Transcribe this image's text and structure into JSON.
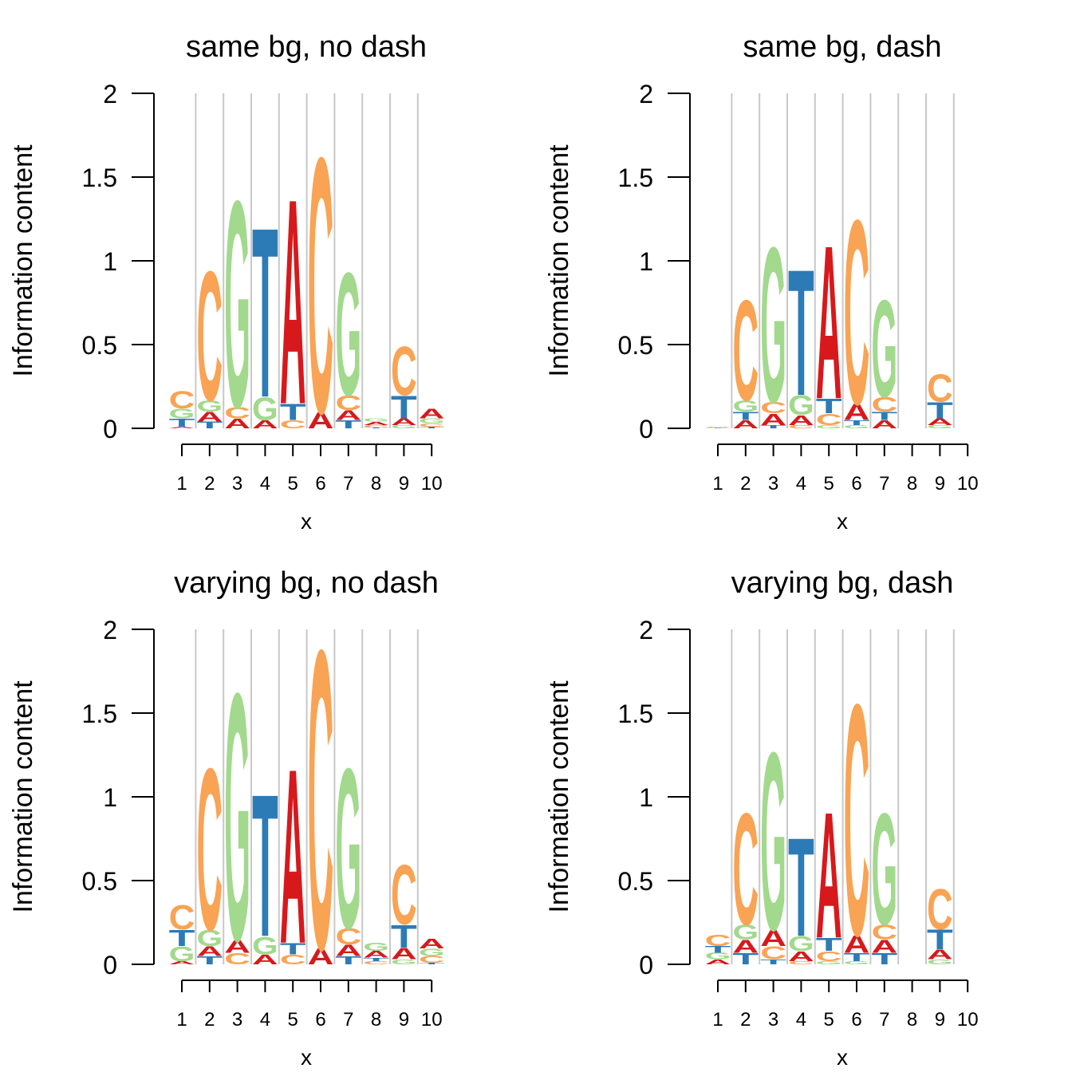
{
  "chart_data": [
    {
      "type": "logo",
      "title": "same bg, no dash",
      "xlabel": "x",
      "ylabel": "Information content",
      "categories": [
        "1",
        "2",
        "3",
        "4",
        "5",
        "6",
        "7",
        "8",
        "9",
        "10"
      ],
      "ylim": [
        0,
        2
      ],
      "yticks": [
        0,
        0.5,
        1,
        1.5,
        2
      ],
      "series": [
        {
          "name": "A",
          "color": "#d7191c",
          "values": [
            0.01,
            0.06,
            0.06,
            0.05,
            1.27,
            0.1,
            0.06,
            0.02,
            0.04,
            0.06
          ]
        },
        {
          "name": "C",
          "color": "#f9a354",
          "values": [
            0.11,
            0.8,
            0.07,
            0,
            0.05,
            1.58,
            0.09,
            0.015,
            0.3,
            0.02
          ]
        },
        {
          "name": "G",
          "color": "#a2d98d",
          "values": [
            0.06,
            0.07,
            1.28,
            0.14,
            0,
            0,
            0.76,
            0.02,
            0.02,
            0.03
          ]
        },
        {
          "name": "T",
          "color": "#2c7bb6",
          "values": [
            0.05,
            0.04,
            0,
            1.05,
            0.1,
            0,
            0.05,
            0.005,
            0.14,
            0.01
          ]
        }
      ]
    },
    {
      "type": "logo",
      "title": "same bg, dash",
      "xlabel": "x",
      "ylabel": "Information content",
      "categories": [
        "1",
        "2",
        "3",
        "4",
        "5",
        "6",
        "7",
        "8",
        "9",
        "10"
      ],
      "ylim": [
        0,
        2
      ],
      "yticks": [
        0,
        0.5,
        1,
        1.5,
        2
      ],
      "series": [
        {
          "name": "A",
          "color": "#d7191c",
          "values": [
            0.003,
            0.05,
            0.07,
            0.06,
            0.95,
            0.1,
            0.05,
            0,
            0.04,
            0
          ]
        },
        {
          "name": "C",
          "color": "#f9a354",
          "values": [
            0.003,
            0.62,
            0.07,
            0.02,
            0.07,
            1.14,
            0.09,
            0,
            0.17,
            0
          ]
        },
        {
          "name": "G",
          "color": "#a2d98d",
          "values": [
            0.002,
            0.07,
            0.96,
            0.12,
            0.02,
            0.02,
            0.6,
            0,
            0.02,
            0
          ]
        },
        {
          "name": "T",
          "color": "#2c7bb6",
          "values": [
            0.002,
            0.05,
            0.02,
            0.78,
            0.09,
            0.03,
            0.05,
            0,
            0.1,
            0
          ]
        }
      ]
    },
    {
      "type": "logo",
      "title": "varying bg, no dash",
      "xlabel": "x",
      "ylabel": "Information content",
      "categories": [
        "1",
        "2",
        "3",
        "4",
        "5",
        "6",
        "7",
        "8",
        "9",
        "10"
      ],
      "ylim": [
        0,
        2
      ],
      "yticks": [
        0,
        0.5,
        1,
        1.5,
        2
      ],
      "series": [
        {
          "name": "A",
          "color": "#d7191c",
          "values": [
            0.02,
            0.06,
            0.08,
            0.06,
            1.08,
            0.1,
            0.07,
            0.04,
            0.07,
            0.06
          ]
        },
        {
          "name": "C",
          "color": "#f9a354",
          "values": [
            0.15,
            1.0,
            0.07,
            0,
            0.06,
            1.85,
            0.1,
            0.02,
            0.37,
            0.04
          ]
        },
        {
          "name": "G",
          "color": "#a2d98d",
          "values": [
            0.09,
            0.1,
            1.53,
            0.11,
            0,
            0,
            0.99,
            0.05,
            0.03,
            0.045
          ]
        },
        {
          "name": "T",
          "color": "#2c7bb6",
          "values": [
            0.1,
            0.05,
            0,
            0.88,
            0.07,
            0,
            0.05,
            0.02,
            0.14,
            0.01
          ]
        }
      ]
    },
    {
      "type": "logo",
      "title": "varying bg, dash",
      "xlabel": "x",
      "ylabel": "Information content",
      "categories": [
        "1",
        "2",
        "3",
        "4",
        "5",
        "6",
        "7",
        "8",
        "9",
        "10"
      ],
      "ylim": [
        0,
        2
      ],
      "yticks": [
        0,
        0.5,
        1,
        1.5,
        2
      ],
      "series": [
        {
          "name": "A",
          "color": "#d7191c",
          "values": [
            0.03,
            0.08,
            0.1,
            0.06,
            0.78,
            0.11,
            0.08,
            0,
            0.06,
            0
          ]
        },
        {
          "name": "C",
          "color": "#f9a354",
          "values": [
            0.07,
            0.69,
            0.08,
            0.02,
            0.06,
            1.43,
            0.09,
            0,
            0.25,
            0
          ]
        },
        {
          "name": "G",
          "color": "#a2d98d",
          "values": [
            0.04,
            0.09,
            1.1,
            0.09,
            0.02,
            0.02,
            0.69,
            0,
            0.03,
            0
          ]
        },
        {
          "name": "T",
          "color": "#2c7bb6",
          "values": [
            0.04,
            0.07,
            0.03,
            0.61,
            0.08,
            0.05,
            0.07,
            0,
            0.12,
            0
          ]
        }
      ]
    }
  ]
}
